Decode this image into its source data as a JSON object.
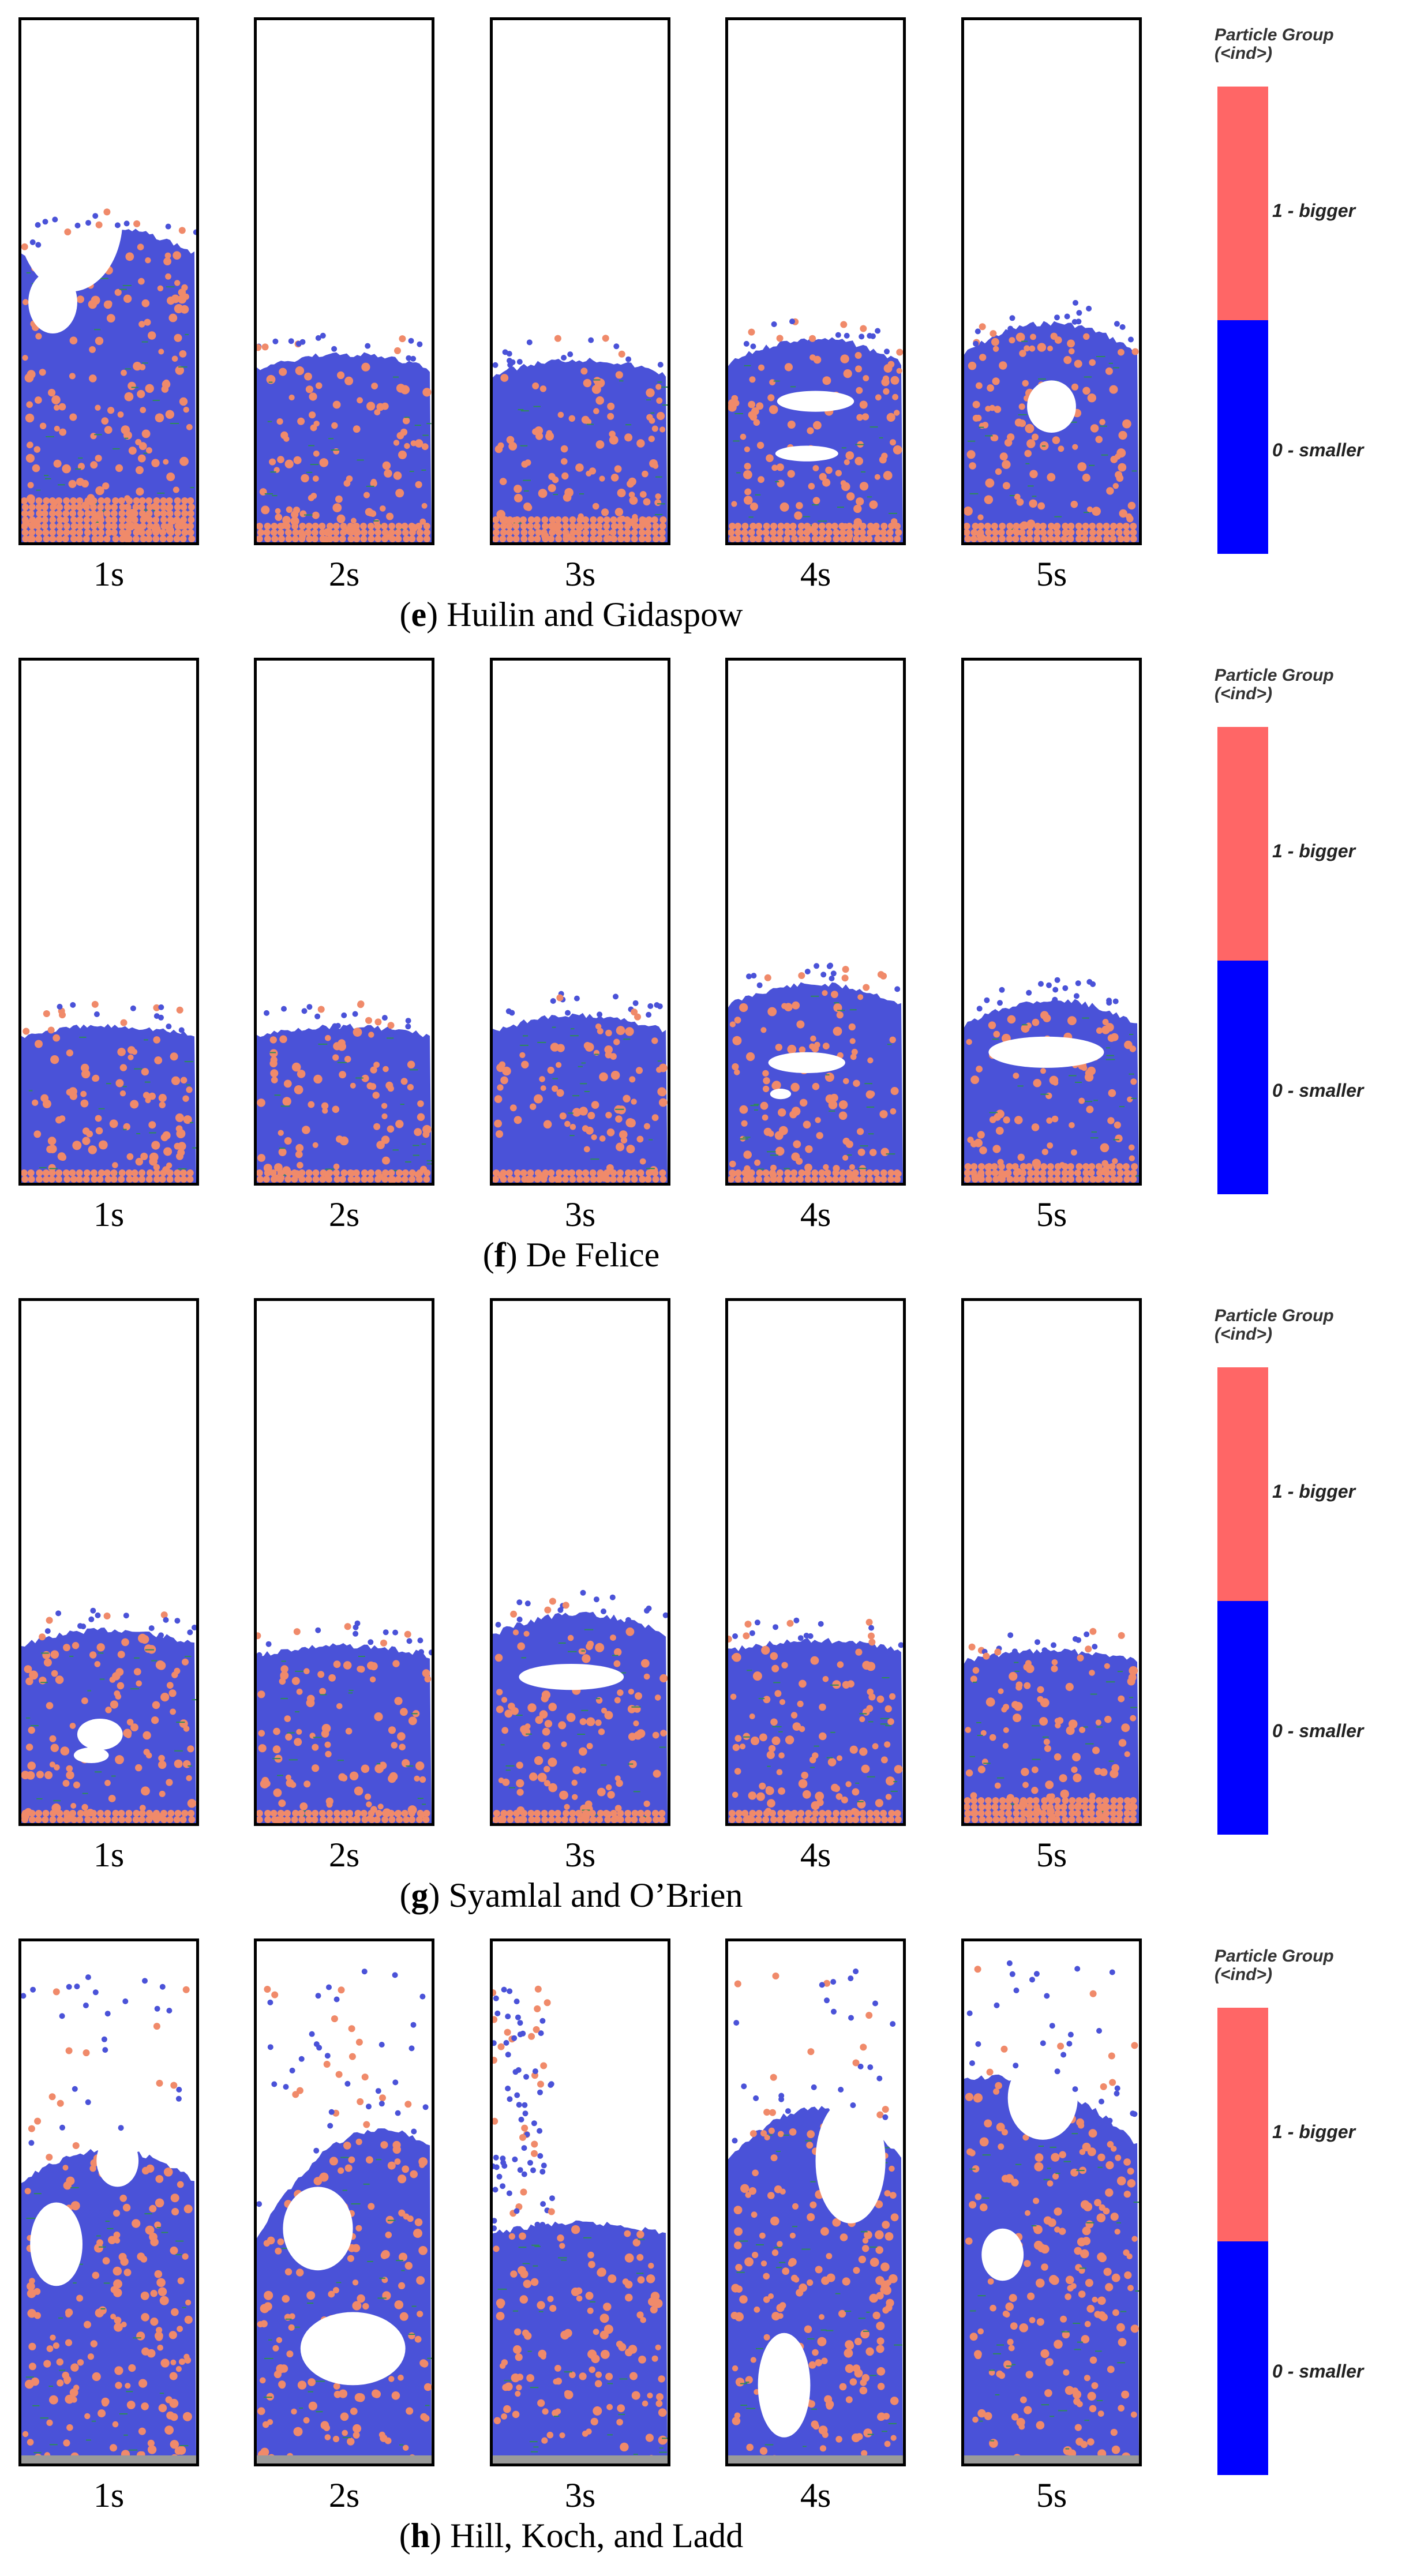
{
  "legend": {
    "title_line1": "Particle Group",
    "title_line2": "(<ind>)",
    "bigger_label": "1 - bigger",
    "smaller_label": "0 - smaller",
    "bigger_color": "#ff6666",
    "smaller_color": "#0000ff"
  },
  "colors": {
    "particle_blue": "#4a52d8",
    "particle_orange": "#f08a6a",
    "particle_green": "#2e8b57",
    "void": "#ffffff",
    "floor_grey": "#9a9a9a"
  },
  "panels": [
    {
      "letter": "e",
      "title": " Huilin and Gidaspow",
      "times": [
        "1s",
        "2s",
        "3s",
        "4s",
        "5s"
      ]
    },
    {
      "letter": "f",
      "title": " De Felice",
      "times": [
        "1s",
        "2s",
        "3s",
        "4s",
        "5s"
      ]
    },
    {
      "letter": "g",
      "title": " Syamlal and O’Brien",
      "times": [
        "1s",
        "2s",
        "3s",
        "4s",
        "5s"
      ]
    },
    {
      "letter": "h",
      "title": " Hill, Koch, and Ladd",
      "times": [
        "1s",
        "2s",
        "3s",
        "4s",
        "5s"
      ]
    }
  ]
}
